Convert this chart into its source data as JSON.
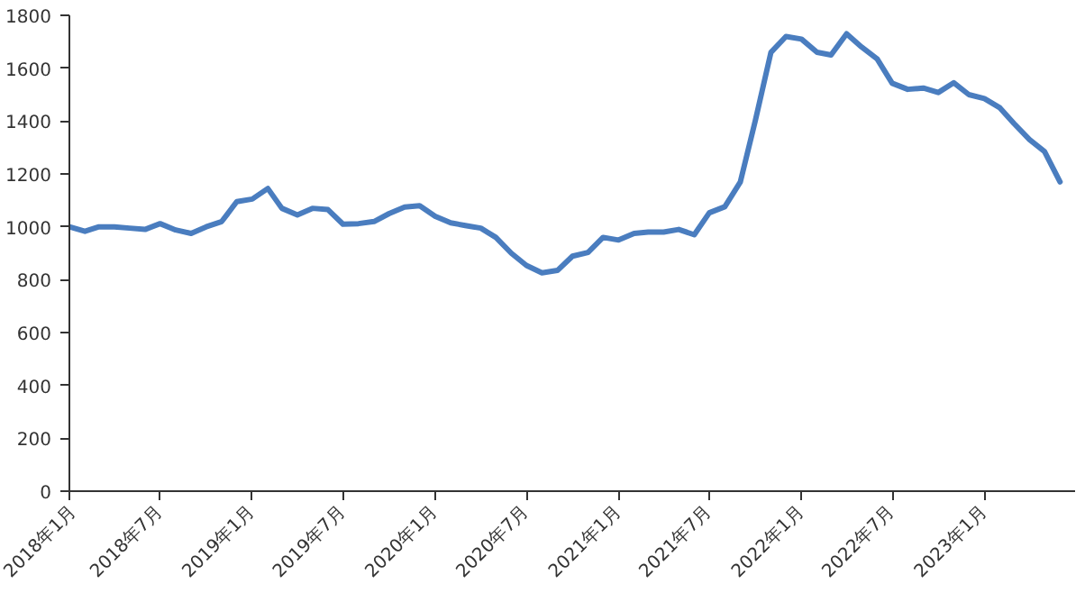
{
  "chart_data": {
    "type": "line",
    "x": [
      "2018-01",
      "2018-02",
      "2018-03",
      "2018-04",
      "2018-05",
      "2018-06",
      "2018-07",
      "2018-08",
      "2018-09",
      "2018-10",
      "2018-11",
      "2018-12",
      "2019-01",
      "2019-02",
      "2019-03",
      "2019-04",
      "2019-05",
      "2019-06",
      "2019-07",
      "2019-08",
      "2019-09",
      "2019-10",
      "2019-11",
      "2019-12",
      "2020-01",
      "2020-02",
      "2020-03",
      "2020-04",
      "2020-05",
      "2020-06",
      "2020-07",
      "2020-08",
      "2020-09",
      "2020-10",
      "2020-11",
      "2020-12",
      "2021-01",
      "2021-02",
      "2021-03",
      "2021-04",
      "2021-05",
      "2021-06",
      "2021-07",
      "2021-08",
      "2021-09",
      "2021-10",
      "2021-11",
      "2021-12",
      "2022-01",
      "2022-02",
      "2022-03",
      "2022-04",
      "2022-05",
      "2022-06",
      "2022-07",
      "2022-08",
      "2022-09",
      "2022-10",
      "2022-11",
      "2022-12",
      "2023-01",
      "2023-02",
      "2023-03",
      "2023-04",
      "2023-05",
      "2023-06"
    ],
    "series": [
      {
        "color": "#4a7dbf",
        "values": [
          1000,
          983,
          1000,
          1000,
          995,
          990,
          1012,
          988,
          975,
          1000,
          1020,
          1095,
          1105,
          1145,
          1070,
          1045,
          1070,
          1065,
          1010,
          1012,
          1020,
          1050,
          1075,
          1080,
          1040,
          1015,
          1005,
          995,
          960,
          900,
          854,
          826,
          835,
          889,
          903,
          960,
          950,
          975,
          980,
          980,
          990,
          970,
          1053,
          1076,
          1170,
          1403,
          1660,
          1720,
          1710,
          1660,
          1650,
          1730,
          1680,
          1635,
          1543,
          1520,
          1525,
          1508,
          1545,
          1500,
          1485,
          1450,
          1391,
          1330,
          1285,
          1170
        ]
      }
    ],
    "xlim": [
      "2018-01",
      "2023-07"
    ],
    "xticks": [
      {
        "value": "2018-01",
        "label": "2018年1月"
      },
      {
        "value": "2018-07",
        "label": "2018年7月"
      },
      {
        "value": "2019-01",
        "label": "2019年1月"
      },
      {
        "value": "2019-07",
        "label": "2019年7月"
      },
      {
        "value": "2020-01",
        "label": "2020年1月"
      },
      {
        "value": "2020-07",
        "label": "2020年7月"
      },
      {
        "value": "2021-01",
        "label": "2021年1月"
      },
      {
        "value": "2021-07",
        "label": "2021年7月"
      },
      {
        "value": "2022-01",
        "label": "2022年1月"
      },
      {
        "value": "2022-07",
        "label": "2022年7月"
      },
      {
        "value": "2023-01",
        "label": "2023年1月"
      }
    ],
    "ylim": [
      0,
      1800
    ],
    "yticks": [
      0,
      200,
      400,
      600,
      800,
      1000,
      1200,
      1400,
      1600,
      1800
    ],
    "grid": false,
    "line_style": "solid"
  }
}
